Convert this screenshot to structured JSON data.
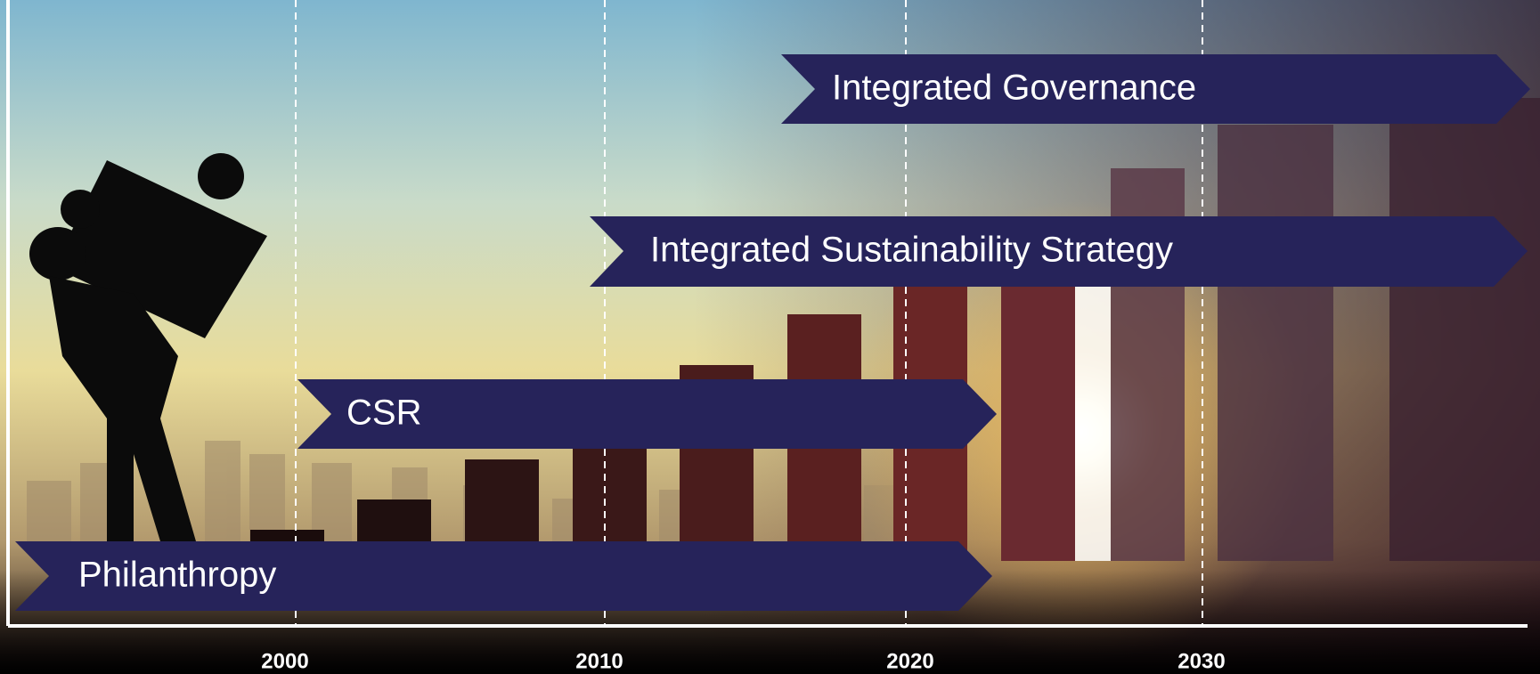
{
  "timeline": {
    "axis_labels": [
      "2000",
      "2010",
      "2020",
      "2030"
    ],
    "stages": [
      {
        "label": "Integrated Governance"
      },
      {
        "label": "Integrated Sustainability Strategy"
      },
      {
        "label": "CSR"
      },
      {
        "label": "Philanthropy"
      }
    ]
  }
}
